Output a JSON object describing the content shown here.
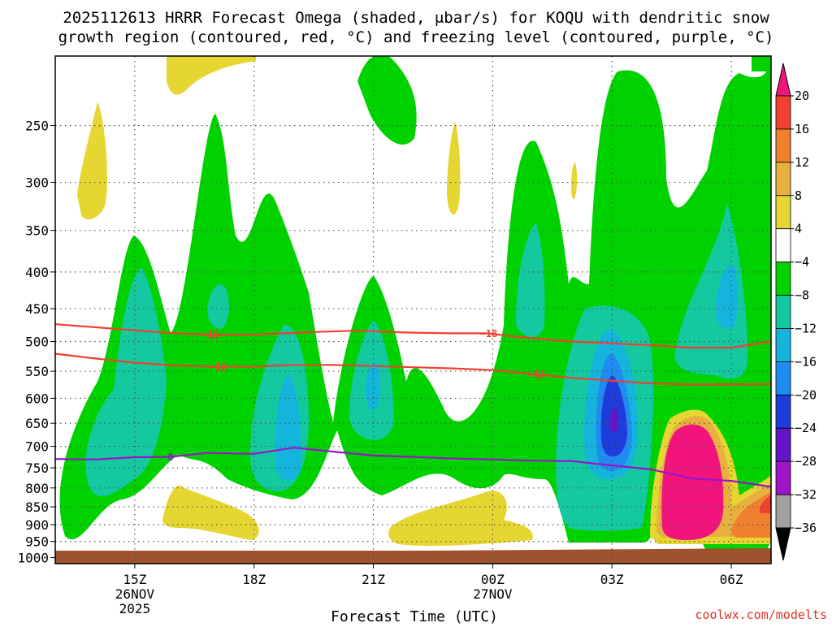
{
  "chart_data": {
    "type": "heatmap",
    "title": "2025112613 HRRR Forecast Omega (shaded, μbar/s) for KOQU with dendritic snow",
    "subtitle": "growth region (contoured, red, °C) and freezing level (contoured, purple, °C)",
    "xlabel": "Forecast Time (UTC)",
    "ylabel": "",
    "credit": "coolwx.com/modelts",
    "x_ticks": [
      {
        "label": "15Z",
        "sub1": "26NOV",
        "sub2": "2025",
        "hour": 15
      },
      {
        "label": "18Z",
        "sub1": "",
        "sub2": "",
        "hour": 18
      },
      {
        "label": "21Z",
        "sub1": "",
        "sub2": "",
        "hour": 21
      },
      {
        "label": "00Z",
        "sub1": "27NOV",
        "sub2": "",
        "hour": 24
      },
      {
        "label": "03Z",
        "sub1": "",
        "sub2": "",
        "hour": 27
      },
      {
        "label": "06Z",
        "sub1": "",
        "sub2": "",
        "hour": 30
      }
    ],
    "xlim": [
      13.0,
      31.0
    ],
    "y_ticks": [
      {
        "label": "250",
        "p": 250
      },
      {
        "label": "300",
        "p": 300
      },
      {
        "label": "350",
        "p": 350
      },
      {
        "label": "400",
        "p": 400
      },
      {
        "label": "450",
        "p": 450
      },
      {
        "label": "500",
        "p": 500
      },
      {
        "label": "550",
        "p": 550
      },
      {
        "label": "600",
        "p": 600
      },
      {
        "label": "650",
        "p": 650
      },
      {
        "label": "700",
        "p": 700
      },
      {
        "label": "750",
        "p": 750
      },
      {
        "label": "800",
        "p": 800
      },
      {
        "label": "850",
        "p": 850
      },
      {
        "label": "900",
        "p": 900
      },
      {
        "label": "950",
        "p": 950
      },
      {
        "label": "1000",
        "p": 1000
      }
    ],
    "ylim": [
      1020,
      200
    ],
    "colorbar": {
      "labels": [
        "20",
        "16",
        "12",
        "8",
        "4",
        "−4",
        "−8",
        "−12",
        "−16",
        "−20",
        "−24",
        "−28",
        "−32",
        "−36"
      ],
      "bands": [
        {
          "color": "#f0147c"
        },
        {
          "color": "#f04030"
        },
        {
          "color": "#f08030"
        },
        {
          "color": "#e8b040"
        },
        {
          "color": "#e6d632"
        },
        {
          "color": "#ffffff"
        },
        {
          "color": "#00d200"
        },
        {
          "color": "#14c8a0"
        },
        {
          "color": "#14b4dc"
        },
        {
          "color": "#1e8cf0"
        },
        {
          "color": "#1e3cdc"
        },
        {
          "color": "#6414c8"
        },
        {
          "color": "#a014c8"
        },
        {
          "color": "#a0a0a0"
        },
        {
          "color": "#000000"
        }
      ]
    },
    "contours": [
      {
        "name": "dgz-minus18",
        "label": "−18",
        "color": "#f04030",
        "label_hours": [
          16.9,
          23.9
        ],
        "points": [
          [
            13.0,
            473
          ],
          [
            14.5,
            480
          ],
          [
            16.0,
            487
          ],
          [
            17.0,
            489
          ],
          [
            18.0,
            489
          ],
          [
            19.5,
            485
          ],
          [
            20.5,
            483
          ],
          [
            22.0,
            486
          ],
          [
            23.0,
            487
          ],
          [
            23.9,
            487
          ],
          [
            24.5,
            492
          ],
          [
            26.0,
            500
          ],
          [
            27.0,
            503
          ],
          [
            28.0,
            506
          ],
          [
            29.0,
            510
          ],
          [
            30.0,
            510
          ],
          [
            31.0,
            500
          ]
        ]
      },
      {
        "name": "dgz-minus12",
        "label": "−12",
        "color": "#f04030",
        "label_hours": [
          17.1,
          25.1
        ],
        "points": [
          [
            13.0,
            520
          ],
          [
            14.0,
            528
          ],
          [
            15.0,
            535
          ],
          [
            16.0,
            540
          ],
          [
            17.0,
            542
          ],
          [
            18.0,
            542
          ],
          [
            19.0,
            539
          ],
          [
            20.0,
            539
          ],
          [
            21.0,
            541
          ],
          [
            22.0,
            543
          ],
          [
            23.0,
            545
          ],
          [
            24.0,
            548
          ],
          [
            25.0,
            555
          ],
          [
            26.0,
            562
          ],
          [
            27.0,
            567
          ],
          [
            28.0,
            572
          ],
          [
            29.0,
            574
          ],
          [
            30.0,
            574
          ],
          [
            31.0,
            573
          ]
        ]
      },
      {
        "name": "freezing-level",
        "label": "0",
        "color": "#9a14c8",
        "label_hours": [
          15.9
        ],
        "points": [
          [
            13.0,
            729
          ],
          [
            14.0,
            730
          ],
          [
            15.0,
            725
          ],
          [
            15.9,
            724
          ],
          [
            16.8,
            715
          ],
          [
            18.0,
            717
          ],
          [
            19.0,
            703
          ],
          [
            20.0,
            712
          ],
          [
            21.0,
            721
          ],
          [
            22.0,
            724
          ],
          [
            23.0,
            728
          ],
          [
            24.0,
            730
          ],
          [
            25.0,
            733
          ],
          [
            26.0,
            734
          ],
          [
            27.0,
            744
          ],
          [
            28.0,
            754
          ],
          [
            29.0,
            776
          ],
          [
            30.0,
            782
          ],
          [
            31.0,
            797
          ]
        ]
      }
    ]
  }
}
